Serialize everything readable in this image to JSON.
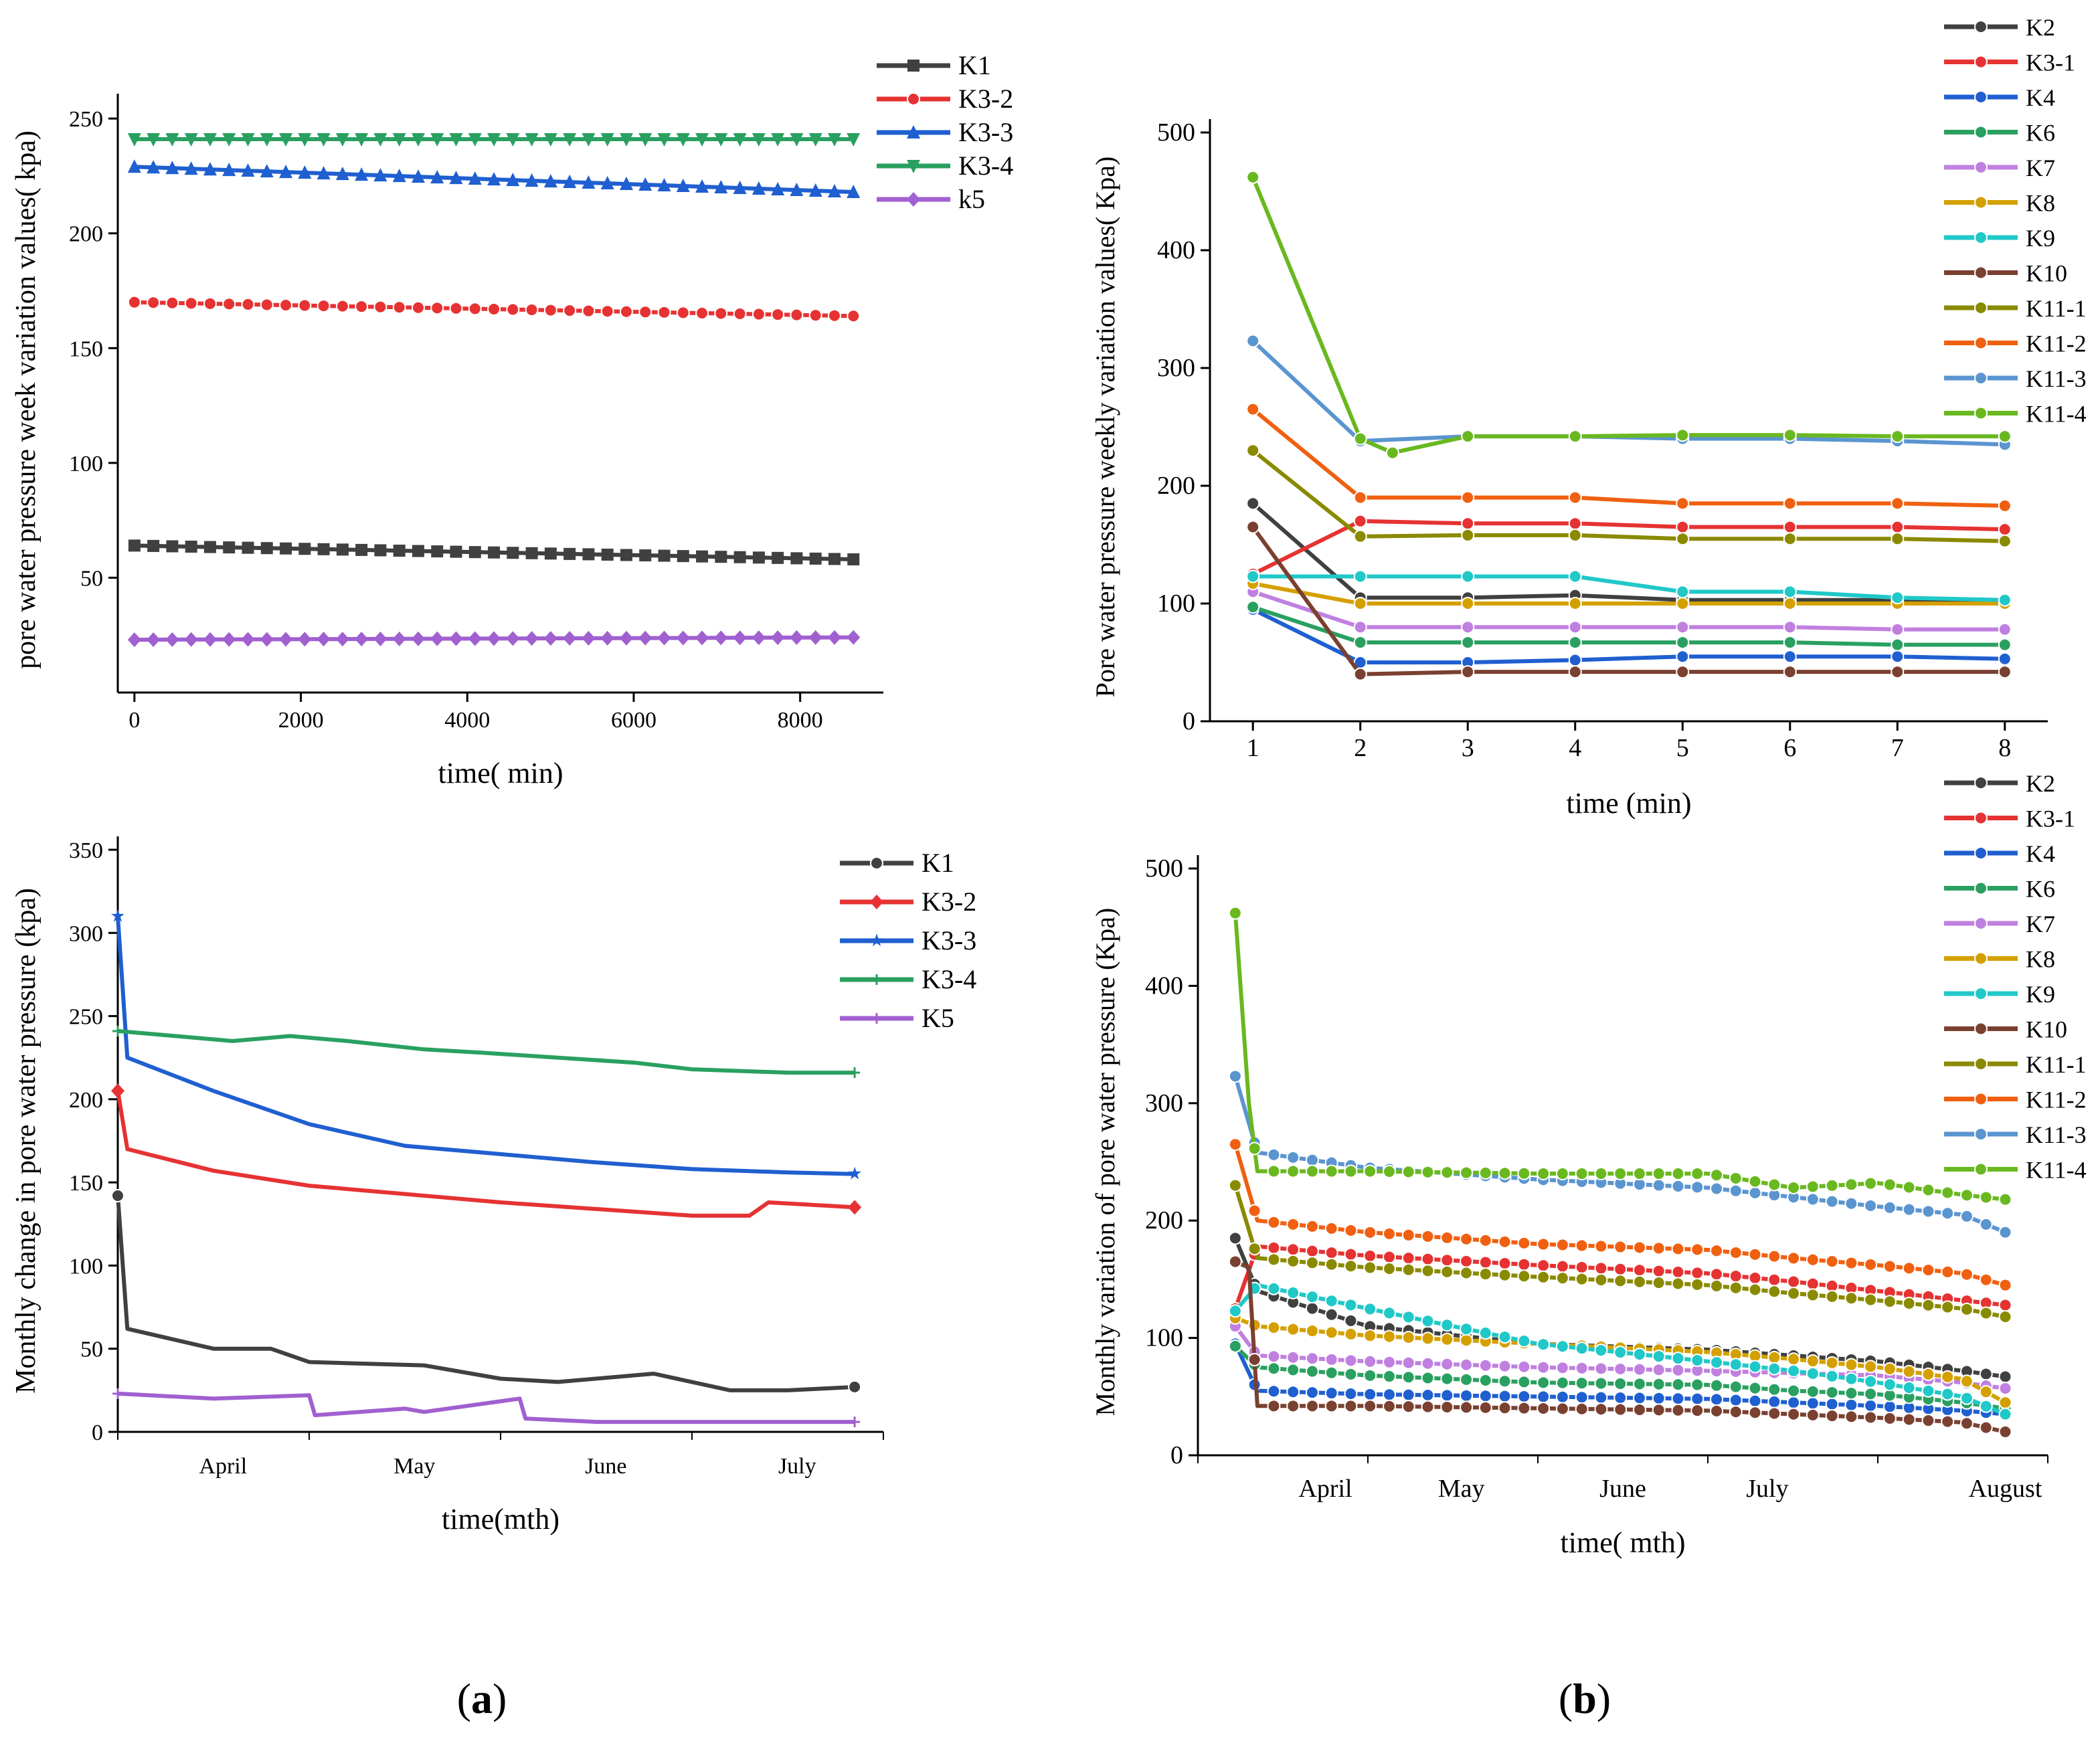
{
  "panel_labels": [
    "a",
    "b"
  ],
  "chart_data": [
    {
      "id": "a_top",
      "type": "line",
      "xlabel": "time(  min)",
      "ylabel": "pore water pressure week variation values(  kpa)",
      "xlim": [
        -200,
        9000
      ],
      "ylim": [
        0,
        255
      ],
      "xticks": [
        0,
        2000,
        4000,
        6000,
        8000
      ],
      "yticks": [
        50,
        100,
        150,
        200,
        250
      ],
      "legend_position": "top-right",
      "series": [
        {
          "name": "K1",
          "color": "#404040",
          "marker": "square",
          "x": [
            0,
            8640
          ],
          "y": [
            64,
            58
          ]
        },
        {
          "name": "K3-2",
          "color": "#e63232",
          "marker": "circle",
          "x": [
            0,
            8640
          ],
          "y": [
            170,
            164
          ]
        },
        {
          "name": "K3-3",
          "color": "#1f5fd0",
          "marker": "triangle-up",
          "x": [
            0,
            8640
          ],
          "y": [
            229,
            218
          ]
        },
        {
          "name": "K3-4",
          "color": "#2aa060",
          "marker": "triangle-down",
          "x": [
            0,
            8640
          ],
          "y": [
            241,
            241
          ]
        },
        {
          "name": "k5",
          "color": "#a060d0",
          "marker": "diamond",
          "x": [
            0,
            8640
          ],
          "y": [
            23,
            24
          ]
        }
      ]
    },
    {
      "id": "a_bottom",
      "type": "line",
      "xlabel": "time(mth)",
      "ylabel": "Monthly change in pore water pressure (kpa)",
      "xlim": [
        0,
        4
      ],
      "ylim": [
        0,
        350
      ],
      "categories": [
        "April",
        "May",
        "June",
        "July"
      ],
      "category_positions": [
        0.55,
        1.55,
        2.55,
        3.55
      ],
      "yticks": [
        0,
        50,
        100,
        150,
        200,
        250,
        300,
        350
      ],
      "legend_position": "top-right",
      "series": [
        {
          "name": "K1",
          "color": "#404040",
          "marker": "circle",
          "x": [
            0,
            0.05,
            0.5,
            0.8,
            1.0,
            1.6,
            2.0,
            2.3,
            2.8,
            3.2,
            3.5,
            3.85
          ],
          "y": [
            142,
            62,
            50,
            50,
            42,
            40,
            32,
            30,
            35,
            25,
            25,
            27
          ]
        },
        {
          "name": "K3-2",
          "color": "#e63232",
          "marker": "diamond",
          "x": [
            0,
            0.05,
            0.5,
            1.0,
            1.5,
            2.0,
            2.5,
            3.0,
            3.3,
            3.4,
            3.85
          ],
          "y": [
            205,
            170,
            157,
            148,
            143,
            138,
            134,
            130,
            130,
            138,
            135
          ]
        },
        {
          "name": "K3-3",
          "color": "#1f5fd0",
          "marker": "star",
          "x": [
            0,
            0.05,
            0.5,
            1.0,
            1.5,
            2.0,
            2.5,
            3.0,
            3.5,
            3.85
          ],
          "y": [
            310,
            225,
            205,
            185,
            172,
            167,
            162,
            158,
            156,
            155
          ]
        },
        {
          "name": "K3-4",
          "color": "#2aa060",
          "marker": "plus",
          "x": [
            0,
            0.3,
            0.6,
            0.9,
            1.2,
            1.6,
            1.9,
            2.3,
            2.7,
            3.0,
            3.5,
            3.85
          ],
          "y": [
            241,
            238,
            235,
            238,
            235,
            230,
            228,
            225,
            222,
            218,
            216,
            216
          ]
        },
        {
          "name": "K5",
          "color": "#a060d0",
          "marker": "plus",
          "x": [
            0,
            0.5,
            1.0,
            1.03,
            1.5,
            1.6,
            2.1,
            2.13,
            2.5,
            3.0,
            3.5,
            3.85
          ],
          "y": [
            23,
            20,
            22,
            10,
            14,
            12,
            20,
            8,
            6,
            6,
            6,
            6
          ]
        }
      ]
    },
    {
      "id": "b_top",
      "type": "line",
      "xlabel": "time (min)",
      "ylabel": "Pore water pressure weekly variation values(  Kpa)",
      "xlim": [
        0.6,
        8.4
      ],
      "ylim": [
        0,
        500
      ],
      "xticks": [
        1,
        2,
        3,
        4,
        5,
        6,
        7,
        8
      ],
      "yticks": [
        0,
        100,
        200,
        300,
        400,
        500
      ],
      "legend_position": "top-right",
      "series": [
        {
          "name": "K2",
          "color": "#404040",
          "marker": "circle",
          "x": [
            1,
            2,
            3,
            4,
            5,
            6,
            7,
            8
          ],
          "y": [
            185,
            105,
            105,
            107,
            103,
            103,
            103,
            100
          ]
        },
        {
          "name": "K3-1",
          "color": "#e63232",
          "marker": "circle",
          "x": [
            1,
            2,
            3,
            4,
            5,
            6,
            7,
            8
          ],
          "y": [
            125,
            170,
            168,
            168,
            165,
            165,
            165,
            163
          ]
        },
        {
          "name": "K4",
          "color": "#1f5fd0",
          "marker": "circle",
          "x": [
            1,
            2,
            3,
            4,
            5,
            6,
            7,
            8
          ],
          "y": [
            95,
            50,
            50,
            52,
            55,
            55,
            55,
            53
          ]
        },
        {
          "name": "K6",
          "color": "#2aa060",
          "marker": "circle",
          "x": [
            1,
            2,
            3,
            4,
            5,
            6,
            7,
            8
          ],
          "y": [
            97,
            67,
            67,
            67,
            67,
            67,
            65,
            65
          ]
        },
        {
          "name": "K7",
          "color": "#c080e0",
          "marker": "circle",
          "x": [
            1,
            2,
            3,
            4,
            5,
            6,
            7,
            8
          ],
          "y": [
            110,
            80,
            80,
            80,
            80,
            80,
            78,
            78
          ]
        },
        {
          "name": "K8",
          "color": "#d4a000",
          "marker": "circle",
          "x": [
            1,
            2,
            3,
            4,
            5,
            6,
            7,
            8
          ],
          "y": [
            117,
            100,
            100,
            100,
            100,
            100,
            100,
            100
          ]
        },
        {
          "name": "K9",
          "color": "#20c8c8",
          "marker": "circle",
          "x": [
            1,
            2,
            3,
            4,
            5,
            6,
            7,
            8
          ],
          "y": [
            123,
            123,
            123,
            123,
            110,
            110,
            105,
            103
          ]
        },
        {
          "name": "K10",
          "color": "#7a4030",
          "marker": "circle",
          "x": [
            1,
            2,
            3,
            4,
            5,
            6,
            7,
            8
          ],
          "y": [
            165,
            40,
            42,
            42,
            42,
            42,
            42,
            42
          ]
        },
        {
          "name": "K11-1",
          "color": "#8a8a00",
          "marker": "circle",
          "x": [
            1,
            2,
            3,
            4,
            5,
            6,
            7,
            8
          ],
          "y": [
            230,
            157,
            158,
            158,
            155,
            155,
            155,
            153
          ]
        },
        {
          "name": "K11-2",
          "color": "#f06010",
          "marker": "circle",
          "x": [
            1,
            2,
            3,
            4,
            5,
            6,
            7,
            8
          ],
          "y": [
            265,
            190,
            190,
            190,
            185,
            185,
            185,
            183
          ]
        },
        {
          "name": "K11-3",
          "color": "#5a95d0",
          "marker": "circle",
          "x": [
            1,
            2,
            3,
            4,
            5,
            6,
            7,
            8
          ],
          "y": [
            323,
            238,
            242,
            242,
            240,
            240,
            238,
            235
          ]
        },
        {
          "name": "K11-4",
          "color": "#6ab820",
          "marker": "circle",
          "x": [
            1,
            2,
            2.3,
            3,
            4,
            5,
            6,
            7,
            8
          ],
          "y": [
            462,
            240,
            228,
            242,
            242,
            243,
            243,
            242,
            242
          ]
        }
      ]
    },
    {
      "id": "b_bottom",
      "type": "line",
      "xlabel": "time(  mth)",
      "ylabel": "Monthly variation of pore water pressure (Kpa)",
      "xlim": [
        0,
        5
      ],
      "ylim": [
        0,
        500
      ],
      "categories": [
        "April",
        "May",
        "June",
        "July",
        "August"
      ],
      "category_positions": [
        0.75,
        1.55,
        2.5,
        3.35,
        4.75
      ],
      "yticks": [
        0,
        100,
        200,
        300,
        400,
        500
      ],
      "legend_position": "top-right",
      "series": [
        {
          "name": "K2",
          "color": "#404040",
          "marker": "circle",
          "x": [
            0.22,
            0.35,
            1.0,
            2.0,
            3.0,
            3.5,
            4.0,
            4.5,
            4.75
          ],
          "y": [
            185,
            140,
            110,
            95,
            90,
            85,
            80,
            72,
            67
          ]
        },
        {
          "name": "K3-1",
          "color": "#e63232",
          "marker": "circle",
          "x": [
            0.22,
            0.35,
            1.0,
            2.0,
            3.0,
            3.5,
            4.0,
            4.5,
            4.75
          ],
          "y": [
            125,
            178,
            170,
            162,
            155,
            148,
            140,
            132,
            128
          ]
        },
        {
          "name": "K4",
          "color": "#1f5fd0",
          "marker": "circle",
          "x": [
            0.22,
            0.35,
            1.0,
            2.0,
            3.0,
            3.5,
            4.0,
            4.5,
            4.75
          ],
          "y": [
            95,
            55,
            52,
            50,
            48,
            45,
            42,
            38,
            35
          ]
        },
        {
          "name": "K6",
          "color": "#2aa060",
          "marker": "circle",
          "x": [
            0.22,
            0.35,
            1.0,
            2.0,
            3.0,
            3.5,
            4.0,
            4.5,
            4.75
          ],
          "y": [
            93,
            75,
            68,
            62,
            60,
            55,
            52,
            45,
            40
          ]
        },
        {
          "name": "K7",
          "color": "#c080e0",
          "marker": "circle",
          "x": [
            0.22,
            0.35,
            1.0,
            2.0,
            3.0,
            3.5,
            4.0,
            4.5,
            4.75
          ],
          "y": [
            110,
            85,
            80,
            75,
            72,
            70,
            68,
            62,
            57
          ]
        },
        {
          "name": "K8",
          "color": "#d4a000",
          "marker": "circle",
          "x": [
            0.22,
            0.35,
            1.0,
            2.0,
            3.0,
            3.5,
            4.0,
            4.5,
            4.75
          ],
          "y": [
            117,
            110,
            102,
            95,
            88,
            82,
            75,
            65,
            45
          ]
        },
        {
          "name": "K9",
          "color": "#20c8c8",
          "marker": "circle",
          "x": [
            0.22,
            0.35,
            1.0,
            2.0,
            3.0,
            3.5,
            4.0,
            4.5,
            4.75
          ],
          "y": [
            123,
            145,
            125,
            95,
            80,
            72,
            62,
            50,
            35
          ]
        },
        {
          "name": "K10",
          "color": "#7a4030",
          "marker": "circle",
          "x": [
            0.22,
            0.3,
            0.35,
            1.0,
            2.0,
            3.0,
            3.5,
            4.0,
            4.5,
            4.75
          ],
          "y": [
            165,
            160,
            42,
            42,
            40,
            38,
            35,
            32,
            28,
            20
          ]
        },
        {
          "name": "K11-1",
          "color": "#8a8a00",
          "marker": "circle",
          "x": [
            0.22,
            0.35,
            1.0,
            2.0,
            3.0,
            3.5,
            4.0,
            4.5,
            4.75
          ],
          "y": [
            230,
            168,
            160,
            152,
            145,
            138,
            132,
            125,
            118
          ]
        },
        {
          "name": "K11-2",
          "color": "#f06010",
          "marker": "circle",
          "x": [
            0.22,
            0.35,
            1.0,
            2.0,
            3.0,
            3.5,
            4.0,
            4.5,
            4.75
          ],
          "y": [
            265,
            200,
            190,
            180,
            175,
            168,
            162,
            155,
            145
          ]
        },
        {
          "name": "K11-3",
          "color": "#5a95d0",
          "marker": "circle",
          "x": [
            0.22,
            0.35,
            1.0,
            2.0,
            3.0,
            3.5,
            4.0,
            4.5,
            4.75
          ],
          "y": [
            323,
            258,
            245,
            235,
            228,
            220,
            212,
            205,
            190
          ]
        },
        {
          "name": "K11-4",
          "color": "#6ab820",
          "marker": "circle",
          "x": [
            0.22,
            0.3,
            0.35,
            1.0,
            2.0,
            3.0,
            3.5,
            4.0,
            4.5,
            4.75
          ],
          "y": [
            462,
            300,
            242,
            242,
            240,
            240,
            228,
            232,
            222,
            218
          ]
        }
      ]
    }
  ]
}
